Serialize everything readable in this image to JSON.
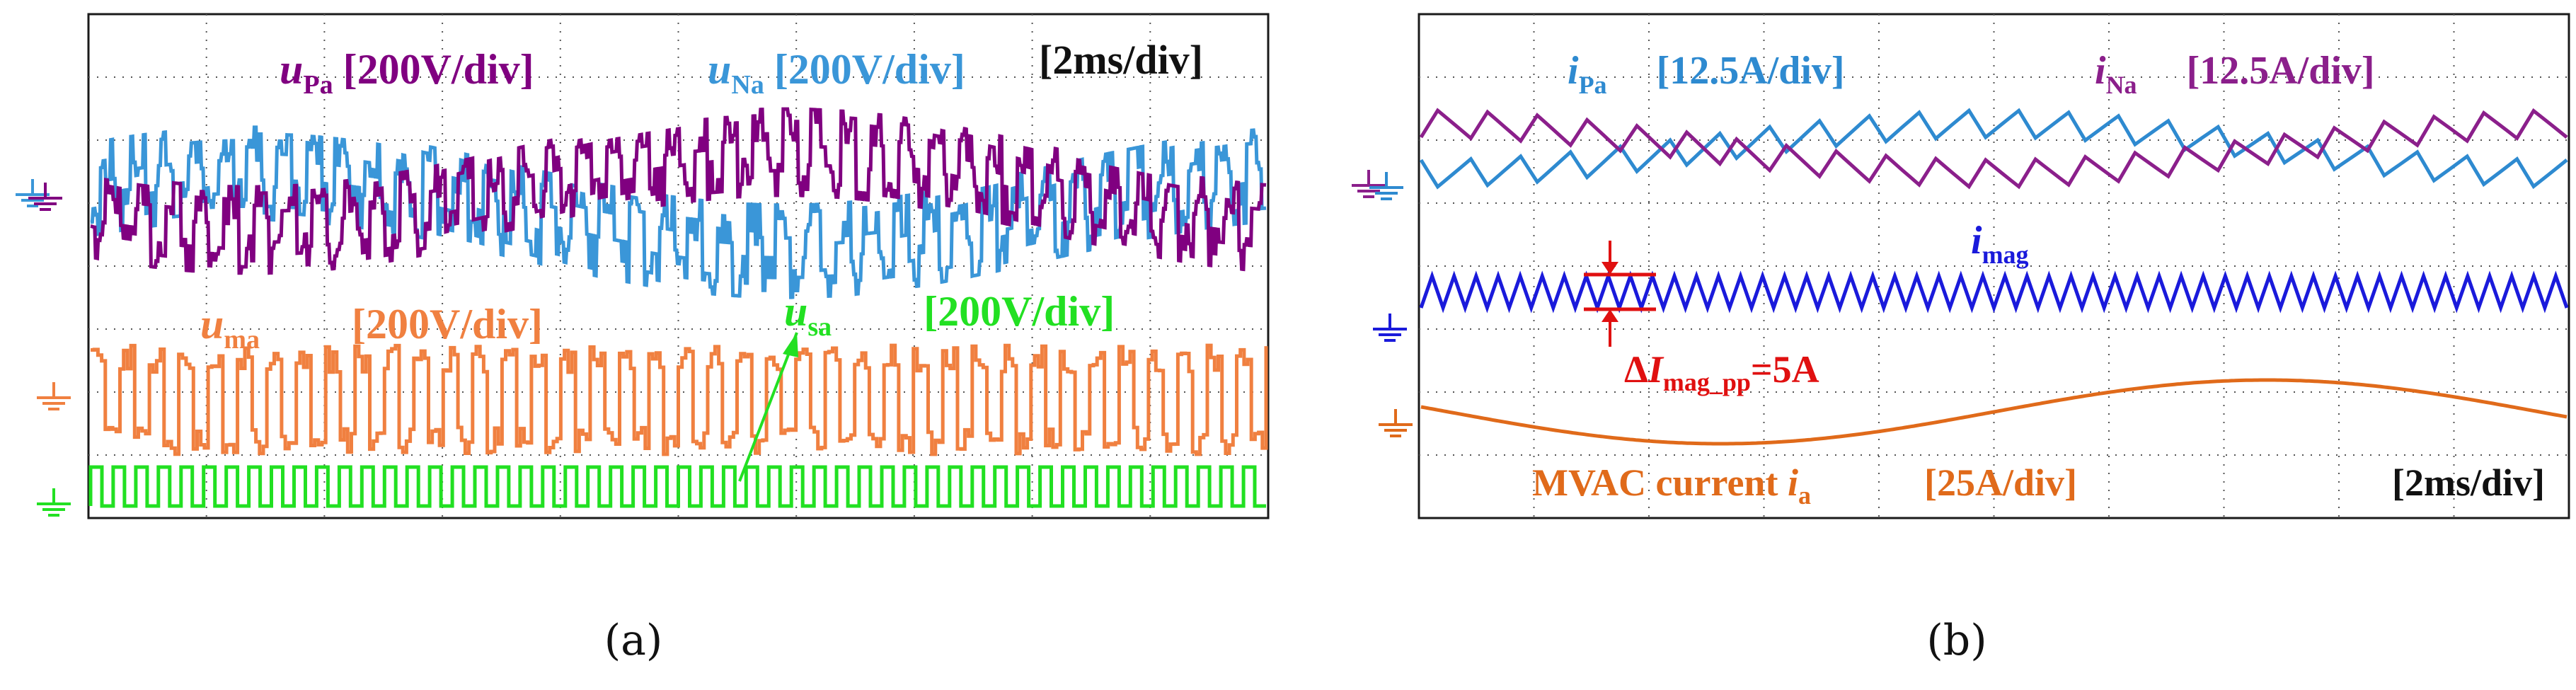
{
  "chart_data": [
    {
      "type": "line",
      "panel": "a",
      "caption": "(a)",
      "time_scale": "[2ms/div]",
      "grid": {
        "h_divisions": 10,
        "v_divisions": 8,
        "style": "dotted"
      },
      "colors": {
        "u_pa": "#800080",
        "u_na": "#3a96d8",
        "u_ma": "#f08040",
        "u_sa": "#22e022",
        "arrow": "#22e022"
      },
      "labels": {
        "u_pa": {
          "sym": "u",
          "sub": "Pa",
          "scale": "[200V/div]"
        },
        "u_na": {
          "sym": "u",
          "sub": "Na",
          "scale": "[200V/div]"
        },
        "u_ma": {
          "sym": "u",
          "sub": "ma",
          "scale": "[200V/div]"
        },
        "u_sa": {
          "sym": "u",
          "sub": "sa",
          "scale": "[200V/div]"
        }
      },
      "series": [
        {
          "name": "u_Pa",
          "description": "multilevel staircase PWM voltage with low-frequency sinusoidal envelope",
          "offset_div": 0.45,
          "envelope_div": 0.55,
          "peak_to_peak_div": 2.6
        },
        {
          "name": "u_Na",
          "description": "complementary multilevel voltage, opposite envelope",
          "offset_div": 0.35,
          "envelope_div": 0.55,
          "peak_to_peak_div": 2.6
        },
        {
          "name": "u_ma",
          "description": "square-wave like multilevel medium-frequency voltage",
          "ground_div": 4.6,
          "peak_to_peak_div": 1.4
        },
        {
          "name": "u_sa",
          "description": "medium-frequency square wave",
          "ground_div": 6.7,
          "peak_to_peak_div": 0.9,
          "cycles": 52
        }
      ]
    },
    {
      "type": "line",
      "panel": "b",
      "caption": "(b)",
      "time_scale": "[2ms/div]",
      "grid": {
        "h_divisions": 10,
        "v_divisions": 8,
        "style": "dotted"
      },
      "colors": {
        "i_pa": "#2e8ad0",
        "i_na": "#8b1f8b",
        "i_mag": "#1a1adb",
        "i_a": "#e06a1a",
        "marker": "#e01010"
      },
      "labels": {
        "i_pa": {
          "sym": "i",
          "sub": "Pa",
          "scale": "[12.5A/div]"
        },
        "i_na": {
          "sym": "i",
          "sub": "Na",
          "scale": "[12.5A/div]"
        },
        "i_mag": {
          "sym": "i",
          "sub": "mag"
        },
        "delta": {
          "prefix": "Δ",
          "sym": "I",
          "sub": "mag_pp",
          "value": "=5A"
        },
        "i_a": {
          "text": "MVAC current ",
          "sym": "i",
          "sub": "a",
          "scale": "[25A/div]"
        }
      },
      "series": [
        {
          "name": "i_Pa",
          "description": "sawtooth ripple current riding on low-frequency sine",
          "ripple_cycles": 23
        },
        {
          "name": "i_Na",
          "description": "sawtooth ripple current riding on opposite low-frequency sine",
          "ripple_cycles": 23
        },
        {
          "name": "i_mag",
          "description": "triangular magnetizing current",
          "peak_to_peak_A": 5,
          "cycles": 52
        },
        {
          "name": "i_a",
          "description": "sinusoidal MVAC current",
          "scale_A_per_div": 25
        }
      ]
    }
  ]
}
